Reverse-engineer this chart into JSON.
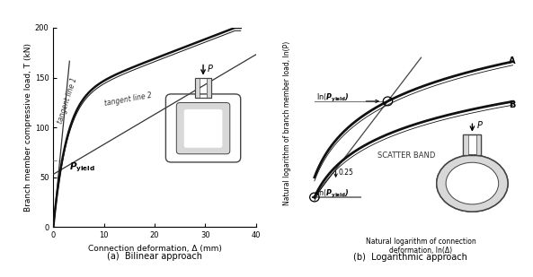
{
  "fig_width": 5.93,
  "fig_height": 3.09,
  "bg_color": "#ffffff",
  "left_xlabel": "Connection deformation, Δ (mm)",
  "left_ylabel": "Branch member compressive load, T (kN)",
  "left_caption": "(a)  Bilinear approach",
  "left_xlim": [
    0,
    40
  ],
  "left_ylim": [
    0,
    200
  ],
  "left_xticks": [
    0.0,
    10.0,
    20.0,
    30.0,
    40.0
  ],
  "left_yticks": [
    0,
    50,
    100,
    150,
    200
  ],
  "right_xlabel": "Natural logarithm of connection\ndeformation, ln(Δ)",
  "right_ylabel": "Natural logarithm of branch member load, ln(P)",
  "right_caption": "(b)  Logarithmic approach",
  "curve_color": "#111111",
  "tangent_color": "#555555",
  "pyield_color": "#888888"
}
